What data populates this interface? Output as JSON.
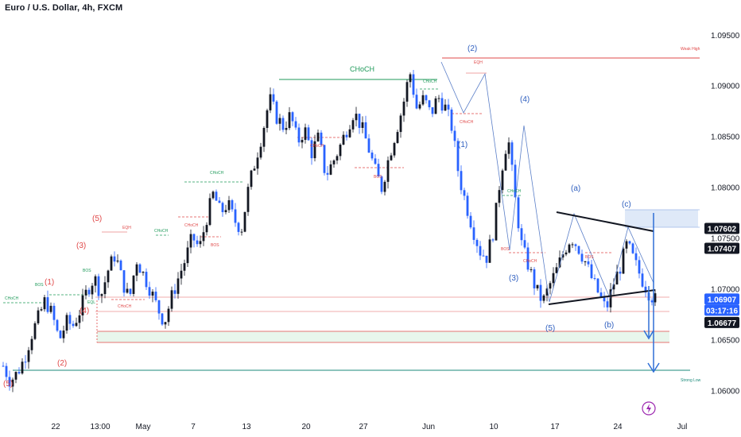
{
  "title": "Euro / U.S. Dollar, 4h, FXCM",
  "colors": {
    "up_candle": "#131722",
    "down_candle": "#2962ff",
    "resistance": "#e04848",
    "choch": "#1f9a5a",
    "strong_low": "#1b8a7a",
    "wave_red": "#e04848",
    "wave_blue": "#2f5fbf",
    "arrow": "#2f6fd6",
    "zone_green": "#e8f6ec",
    "zone_blue": "#dfe9f8"
  },
  "chart_data": {
    "type": "candlestick",
    "title": "Euro / U.S. Dollar, 4h, FXCM",
    "y_ticks": [
      "1.09500",
      "1.09000",
      "1.08500",
      "1.08000",
      "1.07500",
      "1.07000",
      "1.06500",
      "1.06000"
    ],
    "y_tick_values": [
      1.095,
      1.09,
      1.085,
      1.08,
      1.075,
      1.07,
      1.065,
      1.06
    ],
    "ylim": [
      1.0555,
      1.0985
    ],
    "x_ticks": [
      "22",
      "13:00",
      "May",
      "7",
      "13",
      "20",
      "27",
      "Jun",
      "10",
      "17",
      "24",
      "Jul"
    ],
    "price_labels": [
      {
        "text": "1.07602",
        "value": 1.07602,
        "style": "dark"
      },
      {
        "text": "1.07407",
        "value": 1.07407,
        "style": "dark"
      },
      {
        "text": "1.06907",
        "value": 1.06907,
        "style": "blue"
      },
      {
        "text": "03:17:16",
        "value": 1.068,
        "style": "blue"
      },
      {
        "text": "1.06677",
        "value": 1.06677,
        "style": "dark"
      }
    ],
    "path": [
      1.0625,
      1.061,
      1.0618,
      1.0632,
      1.0655,
      1.0672,
      1.069,
      1.0675,
      1.065,
      1.0668,
      1.0665,
      1.068,
      1.07,
      1.0712,
      1.0695,
      1.072,
      1.0735,
      1.0708,
      1.069,
      1.073,
      1.0715,
      1.07,
      1.0682,
      1.0668,
      1.0692,
      1.0712,
      1.073,
      1.0752,
      1.074,
      1.077,
      1.0795,
      1.0775,
      1.0785,
      1.0768,
      1.076,
      1.08,
      1.0828,
      1.0855,
      1.0888,
      1.087,
      1.086,
      1.0872,
      1.0845,
      1.0858,
      1.0835,
      1.085,
      1.0812,
      1.0825,
      1.084,
      1.0858,
      1.0875,
      1.0862,
      1.0842,
      1.0818,
      1.08,
      1.083,
      1.0855,
      1.088,
      1.0915,
      1.0878,
      1.0888,
      1.0872,
      1.089,
      1.088,
      1.086,
      1.0812,
      1.0785,
      1.076,
      1.0738,
      1.0732,
      1.076,
      1.0815,
      1.0852,
      1.079,
      1.0742,
      1.0722,
      1.07,
      1.0688,
      1.0705,
      1.072,
      1.0738,
      1.0752,
      1.0742,
      1.0728,
      1.071,
      1.0695,
      1.068,
      1.0705,
      1.0722,
      1.0745,
      1.0728,
      1.0712,
      1.0698,
      1.069
    ],
    "annotations": {
      "wave_red": [
        "(5)",
        "(1)",
        "(2)",
        "(3)",
        "(4)",
        "(5)"
      ],
      "wave_blue": [
        "(1)",
        "(2)",
        "(3)",
        "(4)",
        "(5)",
        "(a)",
        "(b)",
        "(c)"
      ],
      "structure": [
        "CHoCH",
        "BOS",
        "EQH",
        "EQL",
        "Weak High",
        "Strong Low"
      ]
    }
  },
  "labels": {
    "choch_main": "CHoCH",
    "weak_high": "Weak High",
    "strong_low": "Strong Low",
    "choch_small": "CHoCH",
    "bos": "BOS",
    "eqh": "EQH",
    "eql": "EQL",
    "w_r5a": "(5)",
    "w_r1": "(1)",
    "w_r2": "(2)",
    "w_r3": "(3)",
    "w_r4": "(4)",
    "w_r5b": "(5)",
    "w_b1": "(1)",
    "w_b2": "(2)",
    "w_b3": "(3)",
    "w_b4": "(4)",
    "w_b5": "(5)",
    "w_ba": "(a)",
    "w_bb": "(b)",
    "w_bc": "(c)"
  }
}
